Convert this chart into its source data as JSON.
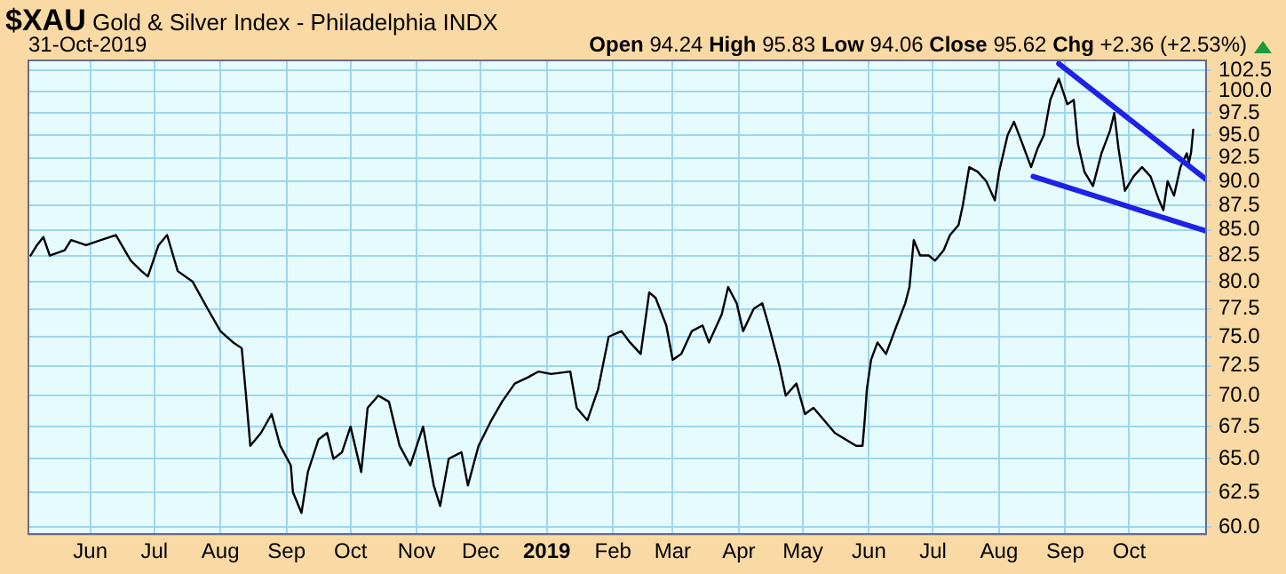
{
  "chart_data": {
    "type": "line",
    "title": "$XAU Gold & Silver Index - Philadelphia INDX",
    "subtitle": "31-Oct-2019",
    "annotations": [
      "Open 94.24 High 95.83 Low 94.06 Close 95.62 Chg +2.36 (+2.53%)"
    ],
    "log": true,
    "grid": true,
    "legend": false,
    "marker": "none",
    "line_style": "solid",
    "xlim": [
      "2018-05-03",
      "2019-11-06"
    ],
    "xticks": [
      {
        "value": "2018-06-01",
        "label": "Jun"
      },
      {
        "value": "2018-07-01",
        "label": "Jul"
      },
      {
        "value": "2018-08-01",
        "label": "Aug"
      },
      {
        "value": "2018-09-01",
        "label": "Sep"
      },
      {
        "value": "2018-10-01",
        "label": "Oct"
      },
      {
        "value": "2018-11-01",
        "label": "Nov"
      },
      {
        "value": "2018-12-01",
        "label": "Dec"
      },
      {
        "value": "2019-01-01",
        "label": "2019"
      },
      {
        "value": "2019-02-01",
        "label": "Feb"
      },
      {
        "value": "2019-03-01",
        "label": "Mar"
      },
      {
        "value": "2019-04-01",
        "label": "Apr"
      },
      {
        "value": "2019-05-01",
        "label": "May"
      },
      {
        "value": "2019-06-01",
        "label": "Jun"
      },
      {
        "value": "2019-07-01",
        "label": "Jul"
      },
      {
        "value": "2019-08-01",
        "label": "Aug"
      },
      {
        "value": "2019-09-01",
        "label": "Sep"
      },
      {
        "value": "2019-10-01",
        "label": "Oct"
      }
    ],
    "ylim": [
      59.5,
      103.7
    ],
    "yticks": [
      {
        "value": 60,
        "label": "60.0"
      },
      62.5,
      {
        "value": 65,
        "label": "65.0"
      },
      67.5,
      {
        "value": 70,
        "label": "70.0"
      },
      72.5,
      {
        "value": 75,
        "label": "75.0"
      },
      77.5,
      {
        "value": 80,
        "label": "80.0"
      },
      82.5,
      {
        "value": 85,
        "label": "85.0"
      },
      87.5,
      {
        "value": 90,
        "label": "90.0"
      },
      92.5,
      {
        "value": 95,
        "label": "95.0"
      },
      97.5,
      {
        "value": 100,
        "label": "100.0"
      },
      102.5
    ],
    "series": [
      {
        "color": "#000000",
        "x": [
          "2018-05-04",
          "2018-05-07",
          "2018-05-10",
          "2018-05-13",
          "2018-05-20",
          "2018-05-23",
          "2018-05-30",
          "2018-06-06",
          "2018-06-13",
          "2018-06-20",
          "2018-06-25",
          "2018-06-28",
          "2018-07-03",
          "2018-07-07",
          "2018-07-12",
          "2018-07-19",
          "2018-07-26",
          "2018-08-01",
          "2018-08-07",
          "2018-08-11",
          "2018-08-13",
          "2018-08-15",
          "2018-08-20",
          "2018-08-25",
          "2018-08-29",
          "2018-09-03",
          "2018-09-04",
          "2018-09-08",
          "2018-09-11",
          "2018-09-16",
          "2018-09-20",
          "2018-09-23",
          "2018-09-27",
          "2018-10-01",
          "2018-10-06",
          "2018-10-09",
          "2018-10-14",
          "2018-10-19",
          "2018-10-24",
          "2018-10-29",
          "2018-11-04",
          "2018-11-09",
          "2018-11-12",
          "2018-11-16",
          "2018-11-22",
          "2018-11-25",
          "2018-11-30",
          "2018-12-06",
          "2018-12-11",
          "2018-12-17",
          "2018-12-23",
          "2018-12-28",
          "2019-01-03",
          "2019-01-12",
          "2019-01-15",
          "2019-01-20",
          "2019-01-25",
          "2019-01-30",
          "2019-02-05",
          "2019-02-09",
          "2019-02-14",
          "2019-02-18",
          "2019-02-21",
          "2019-02-26",
          "2019-03-01",
          "2019-03-05",
          "2019-03-10",
          "2019-03-15",
          "2019-03-18",
          "2019-03-24",
          "2019-03-27",
          "2019-03-31",
          "2019-04-03",
          "2019-04-08",
          "2019-04-12",
          "2019-04-15",
          "2019-04-20",
          "2019-04-23",
          "2019-04-28",
          "2019-05-02",
          "2019-05-06",
          "2019-05-11",
          "2019-05-16",
          "2019-05-21",
          "2019-05-26",
          "2019-05-29",
          "2019-05-30",
          "2019-05-31",
          "2019-06-02",
          "2019-06-05",
          "2019-06-09",
          "2019-06-14",
          "2019-06-18",
          "2019-06-20",
          "2019-06-22",
          "2019-06-25",
          "2019-06-29",
          "2019-07-02",
          "2019-07-06",
          "2019-07-09",
          "2019-07-13",
          "2019-07-15",
          "2019-07-18",
          "2019-07-22",
          "2019-07-26",
          "2019-07-30",
          "2019-08-01",
          "2019-08-05",
          "2019-08-08",
          "2019-08-12",
          "2019-08-16",
          "2019-08-19",
          "2019-08-22",
          "2019-08-25",
          "2019-08-29",
          "2019-09-02",
          "2019-09-05",
          "2019-09-07",
          "2019-09-10",
          "2019-09-14",
          "2019-09-18",
          "2019-09-22",
          "2019-09-24",
          "2019-09-26",
          "2019-09-29",
          "2019-10-03",
          "2019-10-07",
          "2019-10-11",
          "2019-10-15",
          "2019-10-17",
          "2019-10-19",
          "2019-10-22",
          "2019-10-25",
          "2019-10-28",
          "2019-10-29",
          "2019-10-30",
          "2019-10-31"
        ],
        "values": [
          82.5,
          83.5,
          84.3,
          82.5,
          83,
          84,
          83.5,
          84,
          84.5,
          82,
          81,
          80.5,
          83.5,
          84.5,
          81,
          80,
          77.5,
          75.5,
          74.5,
          74,
          70,
          66,
          67,
          68.5,
          66,
          64.5,
          62.5,
          61,
          64,
          66.5,
          67,
          65,
          65.5,
          67.5,
          64,
          69,
          70,
          69.5,
          66,
          64.5,
          67.5,
          63,
          61.5,
          65,
          65.5,
          63,
          66,
          68,
          69.5,
          71,
          71.5,
          72,
          71.8,
          72,
          69,
          68,
          70.5,
          75,
          75.5,
          74.5,
          73.5,
          79,
          78.5,
          76,
          73,
          73.5,
          75.5,
          76,
          74.5,
          77,
          79.5,
          78,
          75.5,
          77.5,
          78,
          76,
          72.5,
          70,
          71,
          68.5,
          69,
          68,
          67,
          66.5,
          66,
          66,
          68,
          70.5,
          73,
          74.5,
          73.5,
          76,
          78,
          79.5,
          84,
          82.5,
          82.5,
          82,
          83,
          84.5,
          85.5,
          87.5,
          91.5,
          91,
          90,
          88,
          91,
          95,
          96.5,
          94,
          91.5,
          93.5,
          95,
          99,
          101.5,
          98.5,
          99,
          94,
          91,
          89.5,
          93,
          95.5,
          97.5,
          93.5,
          89,
          90.5,
          91.5,
          90.5,
          88,
          87,
          90,
          88.5,
          91.5,
          93,
          92,
          93.1,
          95.62
        ]
      },
      {
        "type": "line",
        "color": "#1f22e6",
        "x": [
          "2019-08-29",
          "2019-11-06"
        ],
        "values": [
          103.3,
          90.2
        ]
      },
      {
        "type": "line",
        "color": "#1f22e6",
        "x": [
          "2019-08-17",
          "2019-11-06"
        ],
        "values": [
          90.5,
          84.9
        ]
      }
    ]
  }
}
